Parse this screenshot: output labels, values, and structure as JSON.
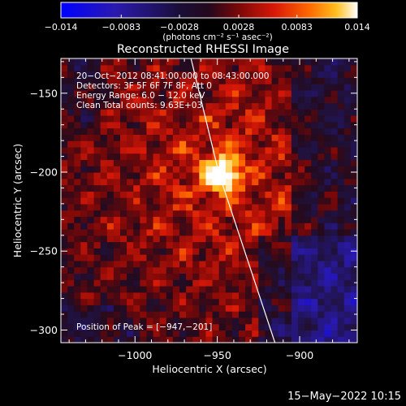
{
  "chart_data": {
    "type": "heatmap",
    "title": "Reconstructed RHESSI Image",
    "xlabel": "Heliocentric X (arcsec)",
    "ylabel": "Heliocentric Y (arcsec)",
    "xlim": [
      -1045,
      -865
    ],
    "ylim": [
      -308,
      -128
    ],
    "x_ticks": [
      -1000,
      -950,
      -900
    ],
    "y_ticks": [
      -150,
      -200,
      -250,
      -300
    ],
    "x_tick_labels": [
      "−1000",
      "−950",
      "−900"
    ],
    "y_tick_labels": [
      "−150",
      "−200",
      "−250",
      "−300"
    ],
    "colorbar": {
      "range": [
        -0.014,
        0.014
      ],
      "ticks": [
        -0.014,
        -0.0083,
        -0.0028,
        0.0028,
        0.0083,
        0.014
      ],
      "tick_labels": [
        "−0.014",
        "−0.0083",
        "−0.0028",
        "0.0028",
        "0.0083",
        "0.014"
      ],
      "unit_label": "(photons cm⁻² s⁻¹ asec⁻²)"
    },
    "peak_xy": [
      -947,
      -201
    ],
    "limb_line": [
      [
        -966,
        -128
      ],
      [
        -949,
        -201
      ],
      [
        -915,
        -308
      ]
    ],
    "annotations": [
      "20−Oct−2012 08:41:00.000 to 08:43:00.000",
      "Detectors: 3F 5F 6F 7F 8F, Att 0",
      "Energy Range: 6.0 − 12.0 keV",
      "Clean      Total counts: 9.63E+03"
    ],
    "peak_label": "Position of Peak = [−947,−201]",
    "footer_date": "15−May−2022 10:15",
    "colors": {
      "background": "#000000",
      "text": "#ffffff",
      "colormap": [
        "#0000ff",
        "#3a1a80",
        "#1c1040",
        "#3a0e2c",
        "#b01010",
        "#ff3a00",
        "#ff9a00",
        "#ffffff"
      ]
    }
  }
}
